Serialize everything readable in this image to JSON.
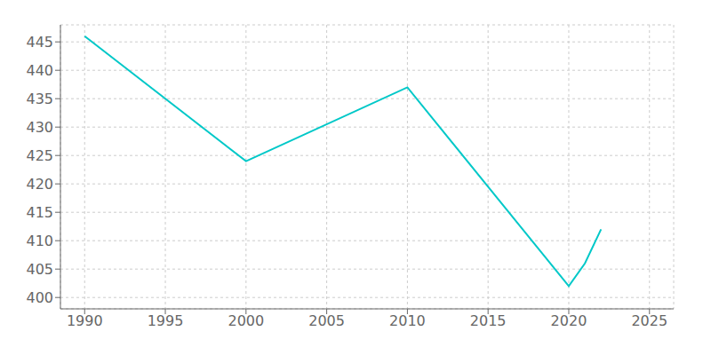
{
  "chart_data": {
    "type": "line",
    "x": [
      1990,
      2000,
      2010,
      2020,
      2021,
      2022
    ],
    "values": [
      446,
      424,
      437,
      402,
      406,
      412
    ],
    "color": "#00C8C8",
    "xlim": [
      1988.5,
      2026.5
    ],
    "ylim": [
      398,
      448
    ],
    "xticks": [
      1990,
      1995,
      2000,
      2005,
      2010,
      2015,
      2020,
      2025
    ],
    "yticks": [
      400,
      405,
      410,
      415,
      420,
      425,
      430,
      435,
      440,
      445
    ],
    "grid": true
  }
}
